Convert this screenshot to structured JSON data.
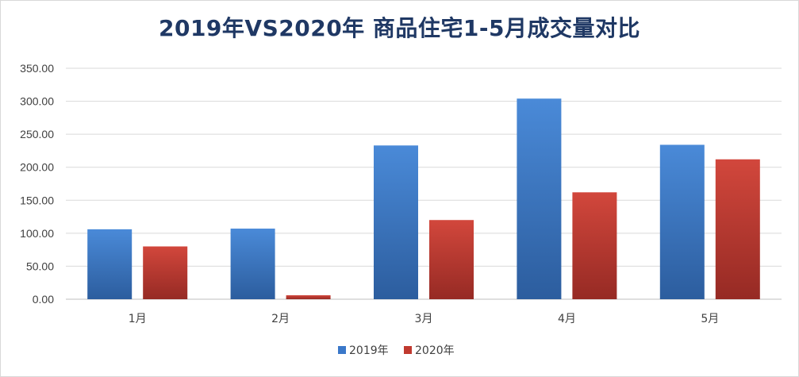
{
  "chart_data": {
    "type": "bar",
    "title": "2019年VS2020年 商品住宅1-5月成交量对比",
    "categories": [
      "1月",
      "2月",
      "3月",
      "4月",
      "5月"
    ],
    "series": [
      {
        "name": "2019年",
        "values": [
          106,
          107,
          233,
          304,
          234
        ],
        "color": "#3a78c9"
      },
      {
        "name": "2020年",
        "values": [
          80,
          6,
          120,
          162,
          212
        ],
        "color": "#c0392f"
      }
    ],
    "ylim": [
      0,
      350
    ],
    "yticks": [
      "0.00",
      "50.00",
      "100.00",
      "150.00",
      "200.00",
      "250.00",
      "300.00",
      "350.00"
    ],
    "grid": true,
    "legend_position": "bottom"
  }
}
